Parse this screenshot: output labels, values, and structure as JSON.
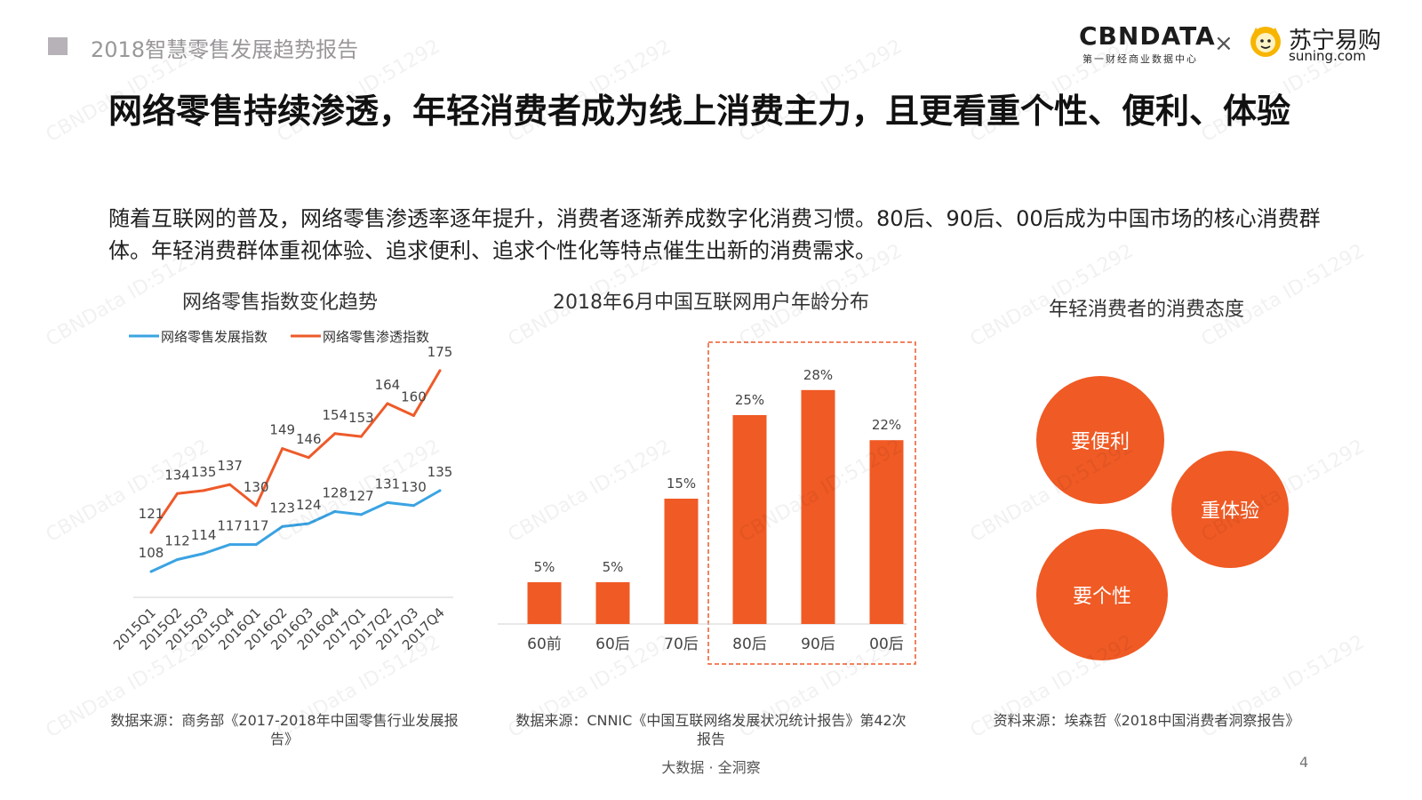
{
  "header": {
    "report_title": "2018智慧零售发展趋势报告",
    "logo_cbn": "CBNDATA",
    "logo_cbn_sub": "第一财经商业数据中心",
    "logo_x": "×",
    "logo_suning_cn": "苏宁易购",
    "logo_suning_en": "suning.com"
  },
  "main_title": "网络零售持续渗透，年轻消费者成为线上消费主力，且更看重个性、便利、体验",
  "intro": "随着互联网的普及，网络零售渗透率逐年提升，消费者逐渐养成数字化消费习惯。80后、90后、00后成为中国市场的核心消费群体。年轻消费群体重视体验、追求便利、追求个性化等特点催生出新的消费需求。",
  "chart_data": [
    {
      "type": "line",
      "title": "网络零售指数变化趋势",
      "categories": [
        "2015Q1",
        "2015Q2",
        "2015Q3",
        "2015Q4",
        "2016Q1",
        "2016Q2",
        "2016Q3",
        "2016Q4",
        "2017Q1",
        "2017Q2",
        "2017Q3",
        "2017Q4"
      ],
      "series": [
        {
          "name": "网络零售发展指数",
          "color": "#3aa3e3",
          "values": [
            108,
            112,
            114,
            117,
            117,
            123,
            124,
            128,
            127,
            131,
            130,
            135
          ]
        },
        {
          "name": "网络零售渗透指数",
          "color": "#ee5a2a",
          "values": [
            121,
            134,
            135,
            137,
            130,
            149,
            146,
            154,
            153,
            164,
            160,
            175
          ]
        }
      ],
      "ylim": [
        100,
        180
      ],
      "legend": "top-left",
      "source": "数据来源：商务部《2017-2018年中国零售行业发展报告》"
    },
    {
      "type": "bar",
      "title": "2018年6月中国互联网用户年龄分布",
      "categories": [
        "60前",
        "60后",
        "70后",
        "80后",
        "90后",
        "00后"
      ],
      "values": [
        5,
        5,
        15,
        25,
        28,
        22
      ],
      "value_labels": [
        "5%",
        "5%",
        "15%",
        "25%",
        "28%",
        "22%"
      ],
      "highlight": [
        "80后",
        "90后",
        "00后"
      ],
      "color": "#f05a24",
      "ylim": [
        0,
        30
      ],
      "source": "数据来源：CNNIC《中国互联网络发展状况统计报告》第42次报告"
    }
  ],
  "attitude": {
    "title": "年轻消费者的消费态度",
    "bubbles": [
      "要便利",
      "重体验",
      "要个性"
    ],
    "source": "资料来源：埃森哲《2018中国消费者洞察报告》"
  },
  "footer": {
    "tagline": "大数据 · 全洞察",
    "page_number": "4"
  },
  "watermark": "CBNData ID:51292",
  "colors": {
    "accent": "#f05a24",
    "line_blue": "#3aa3e3",
    "line_orange": "#ee5a2a"
  }
}
